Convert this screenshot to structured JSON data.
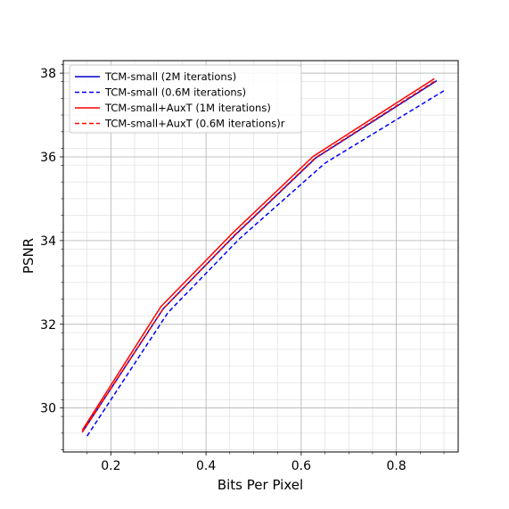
{
  "chart_data": {
    "type": "line",
    "title": "",
    "xlabel": "Bits Per Pixel",
    "ylabel": "PSNR",
    "xlim": [
      0.1,
      0.93
    ],
    "ylim": [
      28.95,
      38.3
    ],
    "xticks": [
      0.2,
      0.4,
      0.6,
      0.8
    ],
    "xtick_labels": [
      "0.2",
      "0.4",
      "0.6",
      "0.8"
    ],
    "yticks": [
      30,
      32,
      34,
      36,
      38
    ],
    "ytick_labels": [
      "30",
      "32",
      "34",
      "36",
      "38"
    ],
    "grid": true,
    "minor_grid": true,
    "legend_position": "top-left",
    "series": [
      {
        "name": "TCM-small (2M iterations)",
        "color": "#0000cc",
        "style": "solid",
        "x": [
          0.14,
          0.31,
          0.46,
          0.63,
          0.885
        ],
        "y": [
          29.42,
          32.37,
          34.12,
          35.97,
          37.82
        ]
      },
      {
        "name": "TCM-small (0.6M iterations)",
        "color": "#0000ff",
        "style": "dashed",
        "x": [
          0.15,
          0.32,
          0.47,
          0.65,
          0.9
        ],
        "y": [
          29.33,
          32.28,
          34.04,
          35.85,
          37.58
        ]
      },
      {
        "name": "TCM-small+AuxT (1M iterations)",
        "color": "#ff0000",
        "style": "solid",
        "x": [
          0.14,
          0.305,
          0.455,
          0.625,
          0.88
        ],
        "y": [
          29.47,
          32.42,
          34.17,
          36.01,
          37.87
        ]
      },
      {
        "name": "TCM-small+AuxT (0.6M iterations)r",
        "color": "#ff0000",
        "style": "dashed",
        "x": [
          0.14,
          0.31,
          0.46,
          0.63,
          0.885
        ],
        "y": [
          29.42,
          32.37,
          34.13,
          35.98,
          37.84
        ]
      }
    ]
  }
}
